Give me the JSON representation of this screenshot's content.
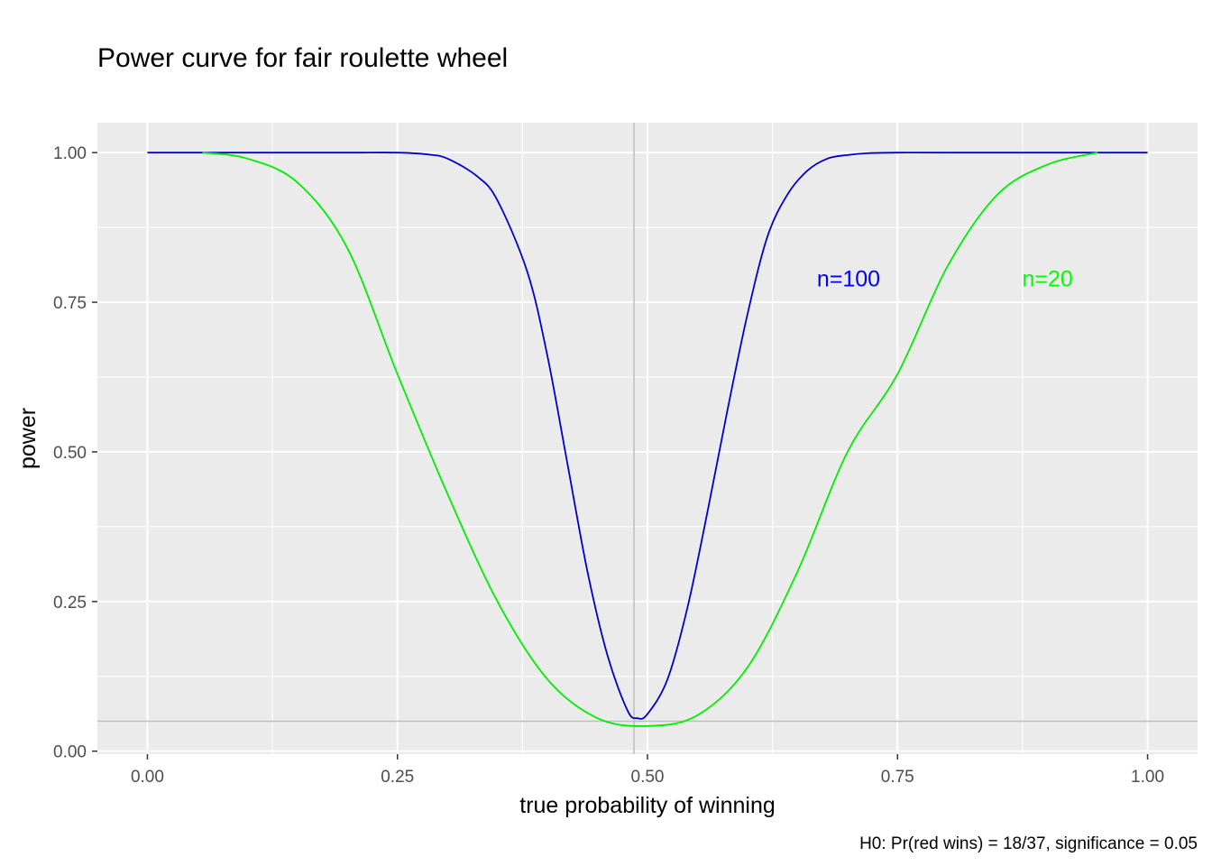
{
  "chart_data": {
    "type": "line",
    "title": "Power curve for fair roulette wheel",
    "xlabel": "true probability of winning",
    "ylabel": "power",
    "caption": "H0: Pr(red wins) = 18/37, significance = 0.05",
    "xlim": [
      -0.05,
      1.05
    ],
    "ylim": [
      -0.005,
      1.05
    ],
    "x_ticks": [
      0,
      0.25,
      0.5,
      0.75,
      1
    ],
    "x_tick_labels": [
      "0.00",
      "0.25",
      "0.50",
      "0.75",
      "1.00"
    ],
    "y_ticks": [
      0,
      0.25,
      0.5,
      0.75,
      1
    ],
    "y_tick_labels": [
      "0.00",
      "0.25",
      "0.50",
      "0.75",
      "1.00"
    ],
    "grid": true,
    "reference_lines": {
      "vertical_x": 0.4865,
      "horizontal_y": 0.05,
      "color": "#bdbdbd"
    },
    "series": [
      {
        "name": "n=100",
        "color": "#0000cc",
        "x": [
          0,
          0.1,
          0.2,
          0.25,
          0.28,
          0.3,
          0.33,
          0.35,
          0.38,
          0.4,
          0.42,
          0.44,
          0.46,
          0.48,
          0.49,
          0.5,
          0.52,
          0.54,
          0.56,
          0.58,
          0.6,
          0.62,
          0.64,
          0.66,
          0.68,
          0.7,
          0.72,
          0.75,
          0.8,
          1
        ],
        "y": [
          1,
          1,
          1,
          1,
          0.997,
          0.99,
          0.96,
          0.92,
          0.8,
          0.66,
          0.48,
          0.3,
          0.16,
          0.068,
          0.055,
          0.062,
          0.12,
          0.24,
          0.4,
          0.57,
          0.73,
          0.86,
          0.93,
          0.97,
          0.99,
          0.996,
          0.999,
          1,
          1,
          1
        ]
      },
      {
        "name": "n=20",
        "color": "#00ee00",
        "x": [
          0.055,
          0.1,
          0.15,
          0.2,
          0.25,
          0.3,
          0.35,
          0.4,
          0.45,
          0.5,
          0.55,
          0.6,
          0.65,
          0.7,
          0.75,
          0.8,
          0.85,
          0.9,
          0.95
        ],
        "y": [
          1,
          0.99,
          0.95,
          0.84,
          0.63,
          0.43,
          0.25,
          0.12,
          0.055,
          0.042,
          0.06,
          0.14,
          0.3,
          0.5,
          0.63,
          0.81,
          0.93,
          0.98,
          1
        ]
      }
    ],
    "annotations": [
      {
        "text": "n=100",
        "x": 0.701,
        "y": 0.79,
        "color": "#0000ff"
      },
      {
        "text": "n=20",
        "x": 0.9,
        "y": 0.79,
        "color": "#00ff00"
      }
    ]
  }
}
